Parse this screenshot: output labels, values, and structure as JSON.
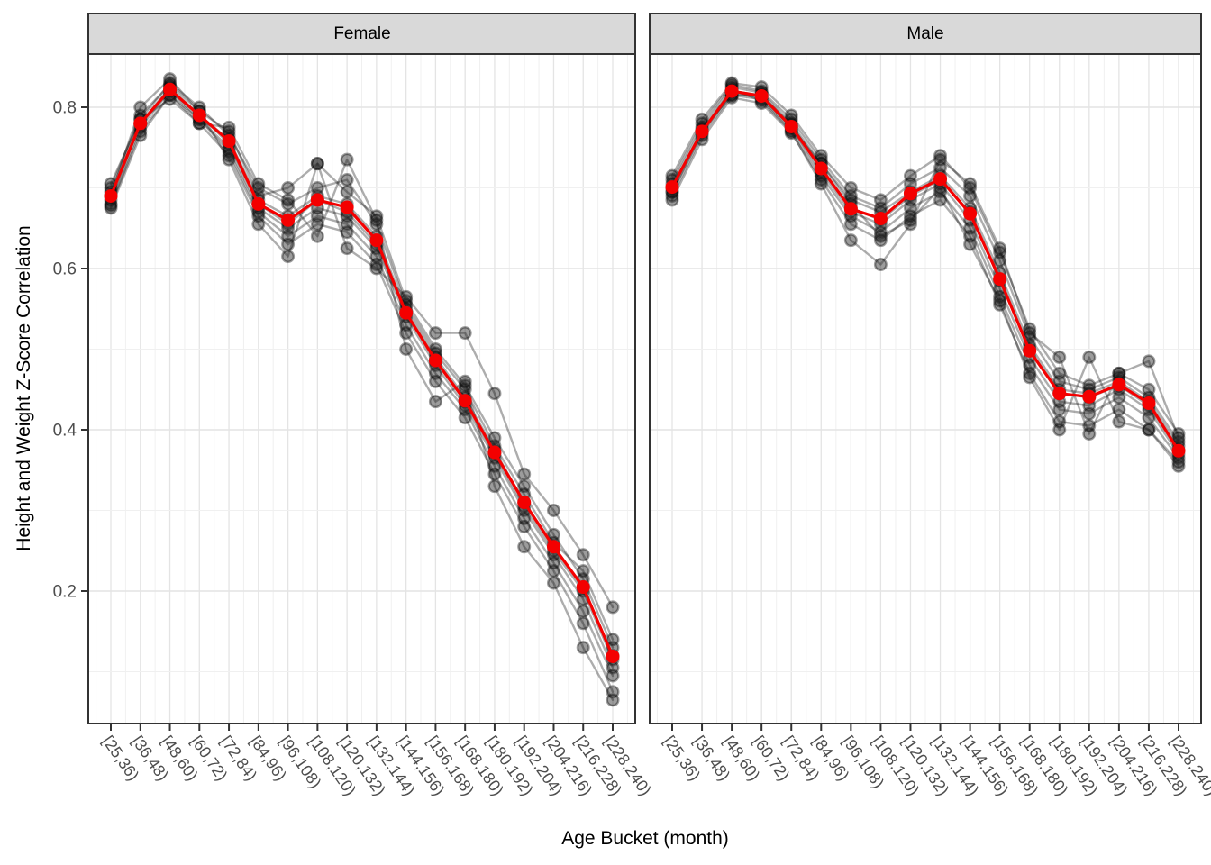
{
  "figure": {
    "y_axis_title": "Height and Weight Z-Score Correlation",
    "x_axis_title": "Age Bucket (month)"
  },
  "colors": {
    "mean_line": "#f40000",
    "gray_series": "#000000",
    "strip_bg": "#d9d9d9",
    "panel_border": "#333333",
    "grid_major": "#e4e4e4",
    "grid_minor": "#f0f0f0",
    "tick_label": "#4d4d4d",
    "background": "#ffffff"
  },
  "chart_data": {
    "type": "line",
    "title": "",
    "xlabel": "Age Bucket (month)",
    "ylabel": "Height and Weight Z-Score Correlation",
    "facets": [
      "Female",
      "Male"
    ],
    "categories": [
      "[25,36)",
      "[36,48)",
      "[48,60)",
      "[60,72)",
      "[72,84)",
      "[84,96)",
      "[96,108)",
      "[108,120)",
      "[120,132)",
      "[132,144)",
      "[144,156)",
      "[156,168)",
      "[168,180)",
      "[180,192)",
      "[192,204)",
      "[204,216)",
      "[216,228)",
      "[228,240)"
    ],
    "yticks": [
      0.2,
      0.4,
      0.6,
      0.8
    ],
    "yticks_minor": [
      0.1,
      0.3,
      0.5,
      0.7
    ],
    "ylim": [
      0.04,
      0.87
    ],
    "grid": true,
    "legend": "none",
    "mean_series_color_meaning": "red line = mean across individual series",
    "panels": [
      {
        "key": "female",
        "label": "Female",
        "mean": [
          0.69,
          0.78,
          0.822,
          0.79,
          0.758,
          0.68,
          0.66,
          0.685,
          0.676,
          0.635,
          0.545,
          0.486,
          0.436,
          0.372,
          0.31,
          0.255,
          0.205,
          0.119
        ],
        "series": [
          [
            0.7,
            0.79,
            0.828,
            0.795,
            0.77,
            0.69,
            0.7,
            0.73,
            0.695,
            0.665,
            0.56,
            0.5,
            0.455,
            0.39,
            0.33,
            0.27,
            0.215,
            0.13
          ],
          [
            0.695,
            0.785,
            0.83,
            0.8,
            0.765,
            0.7,
            0.68,
            0.7,
            0.71,
            0.655,
            0.555,
            0.495,
            0.45,
            0.38,
            0.32,
            0.26,
            0.225,
            0.14
          ],
          [
            0.69,
            0.78,
            0.825,
            0.79,
            0.76,
            0.685,
            0.665,
            0.69,
            0.68,
            0.64,
            0.55,
            0.49,
            0.44,
            0.375,
            0.31,
            0.255,
            0.205,
            0.12
          ],
          [
            0.685,
            0.78,
            0.82,
            0.79,
            0.755,
            0.68,
            0.655,
            0.685,
            0.67,
            0.63,
            0.545,
            0.485,
            0.435,
            0.37,
            0.305,
            0.25,
            0.2,
            0.115
          ],
          [
            0.68,
            0.775,
            0.82,
            0.785,
            0.75,
            0.675,
            0.65,
            0.675,
            0.665,
            0.625,
            0.54,
            0.48,
            0.43,
            0.365,
            0.3,
            0.245,
            0.19,
            0.105
          ],
          [
            0.678,
            0.77,
            0.815,
            0.785,
            0.745,
            0.67,
            0.64,
            0.665,
            0.655,
            0.615,
            0.53,
            0.47,
            0.425,
            0.355,
            0.29,
            0.235,
            0.175,
            0.095
          ],
          [
            0.675,
            0.765,
            0.815,
            0.78,
            0.74,
            0.665,
            0.63,
            0.655,
            0.645,
            0.605,
            0.52,
            0.46,
            0.415,
            0.345,
            0.28,
            0.225,
            0.16,
            0.075
          ],
          [
            0.69,
            0.8,
            0.835,
            0.795,
            0.735,
            0.655,
            0.615,
            0.73,
            0.625,
            0.6,
            0.565,
            0.52,
            0.52,
            0.445,
            0.345,
            0.3,
            0.245,
            0.18
          ],
          [
            0.705,
            0.785,
            0.81,
            0.78,
            0.775,
            0.705,
            0.685,
            0.64,
            0.735,
            0.66,
            0.5,
            0.435,
            0.46,
            0.33,
            0.255,
            0.21,
            0.13,
            0.065
          ]
        ]
      },
      {
        "key": "male",
        "label": "Male",
        "mean": [
          0.701,
          0.77,
          0.82,
          0.814,
          0.776,
          0.724,
          0.674,
          0.662,
          0.693,
          0.711,
          0.668,
          0.587,
          0.498,
          0.445,
          0.441,
          0.456,
          0.433,
          0.374
        ],
        "series": [
          [
            0.715,
            0.785,
            0.83,
            0.825,
            0.79,
            0.74,
            0.7,
            0.685,
            0.715,
            0.74,
            0.7,
            0.62,
            0.525,
            0.47,
            0.455,
            0.47,
            0.45,
            0.395
          ],
          [
            0.71,
            0.78,
            0.828,
            0.82,
            0.785,
            0.735,
            0.69,
            0.675,
            0.705,
            0.725,
            0.69,
            0.61,
            0.515,
            0.46,
            0.45,
            0.465,
            0.44,
            0.385
          ],
          [
            0.705,
            0.775,
            0.825,
            0.818,
            0.78,
            0.73,
            0.685,
            0.67,
            0.695,
            0.715,
            0.675,
            0.595,
            0.505,
            0.45,
            0.445,
            0.46,
            0.435,
            0.38
          ],
          [
            0.7,
            0.77,
            0.82,
            0.815,
            0.778,
            0.725,
            0.675,
            0.66,
            0.69,
            0.71,
            0.67,
            0.585,
            0.5,
            0.445,
            0.44,
            0.455,
            0.43,
            0.375
          ],
          [
            0.695,
            0.768,
            0.818,
            0.812,
            0.775,
            0.72,
            0.67,
            0.655,
            0.685,
            0.705,
            0.66,
            0.575,
            0.49,
            0.435,
            0.43,
            0.45,
            0.425,
            0.37
          ],
          [
            0.69,
            0.765,
            0.815,
            0.81,
            0.772,
            0.715,
            0.665,
            0.645,
            0.675,
            0.695,
            0.65,
            0.565,
            0.48,
            0.425,
            0.42,
            0.44,
            0.415,
            0.365
          ],
          [
            0.685,
            0.76,
            0.812,
            0.805,
            0.768,
            0.71,
            0.655,
            0.635,
            0.665,
            0.685,
            0.64,
            0.555,
            0.47,
            0.41,
            0.405,
            0.425,
            0.4,
            0.355
          ],
          [
            0.7,
            0.77,
            0.822,
            0.808,
            0.77,
            0.705,
            0.635,
            0.605,
            0.655,
            0.735,
            0.705,
            0.625,
            0.52,
            0.49,
            0.395,
            0.47,
            0.485,
            0.39
          ],
          [
            0.695,
            0.772,
            0.815,
            0.815,
            0.775,
            0.73,
            0.68,
            0.64,
            0.66,
            0.7,
            0.63,
            0.56,
            0.465,
            0.4,
            0.49,
            0.41,
            0.4,
            0.36
          ]
        ]
      }
    ]
  }
}
